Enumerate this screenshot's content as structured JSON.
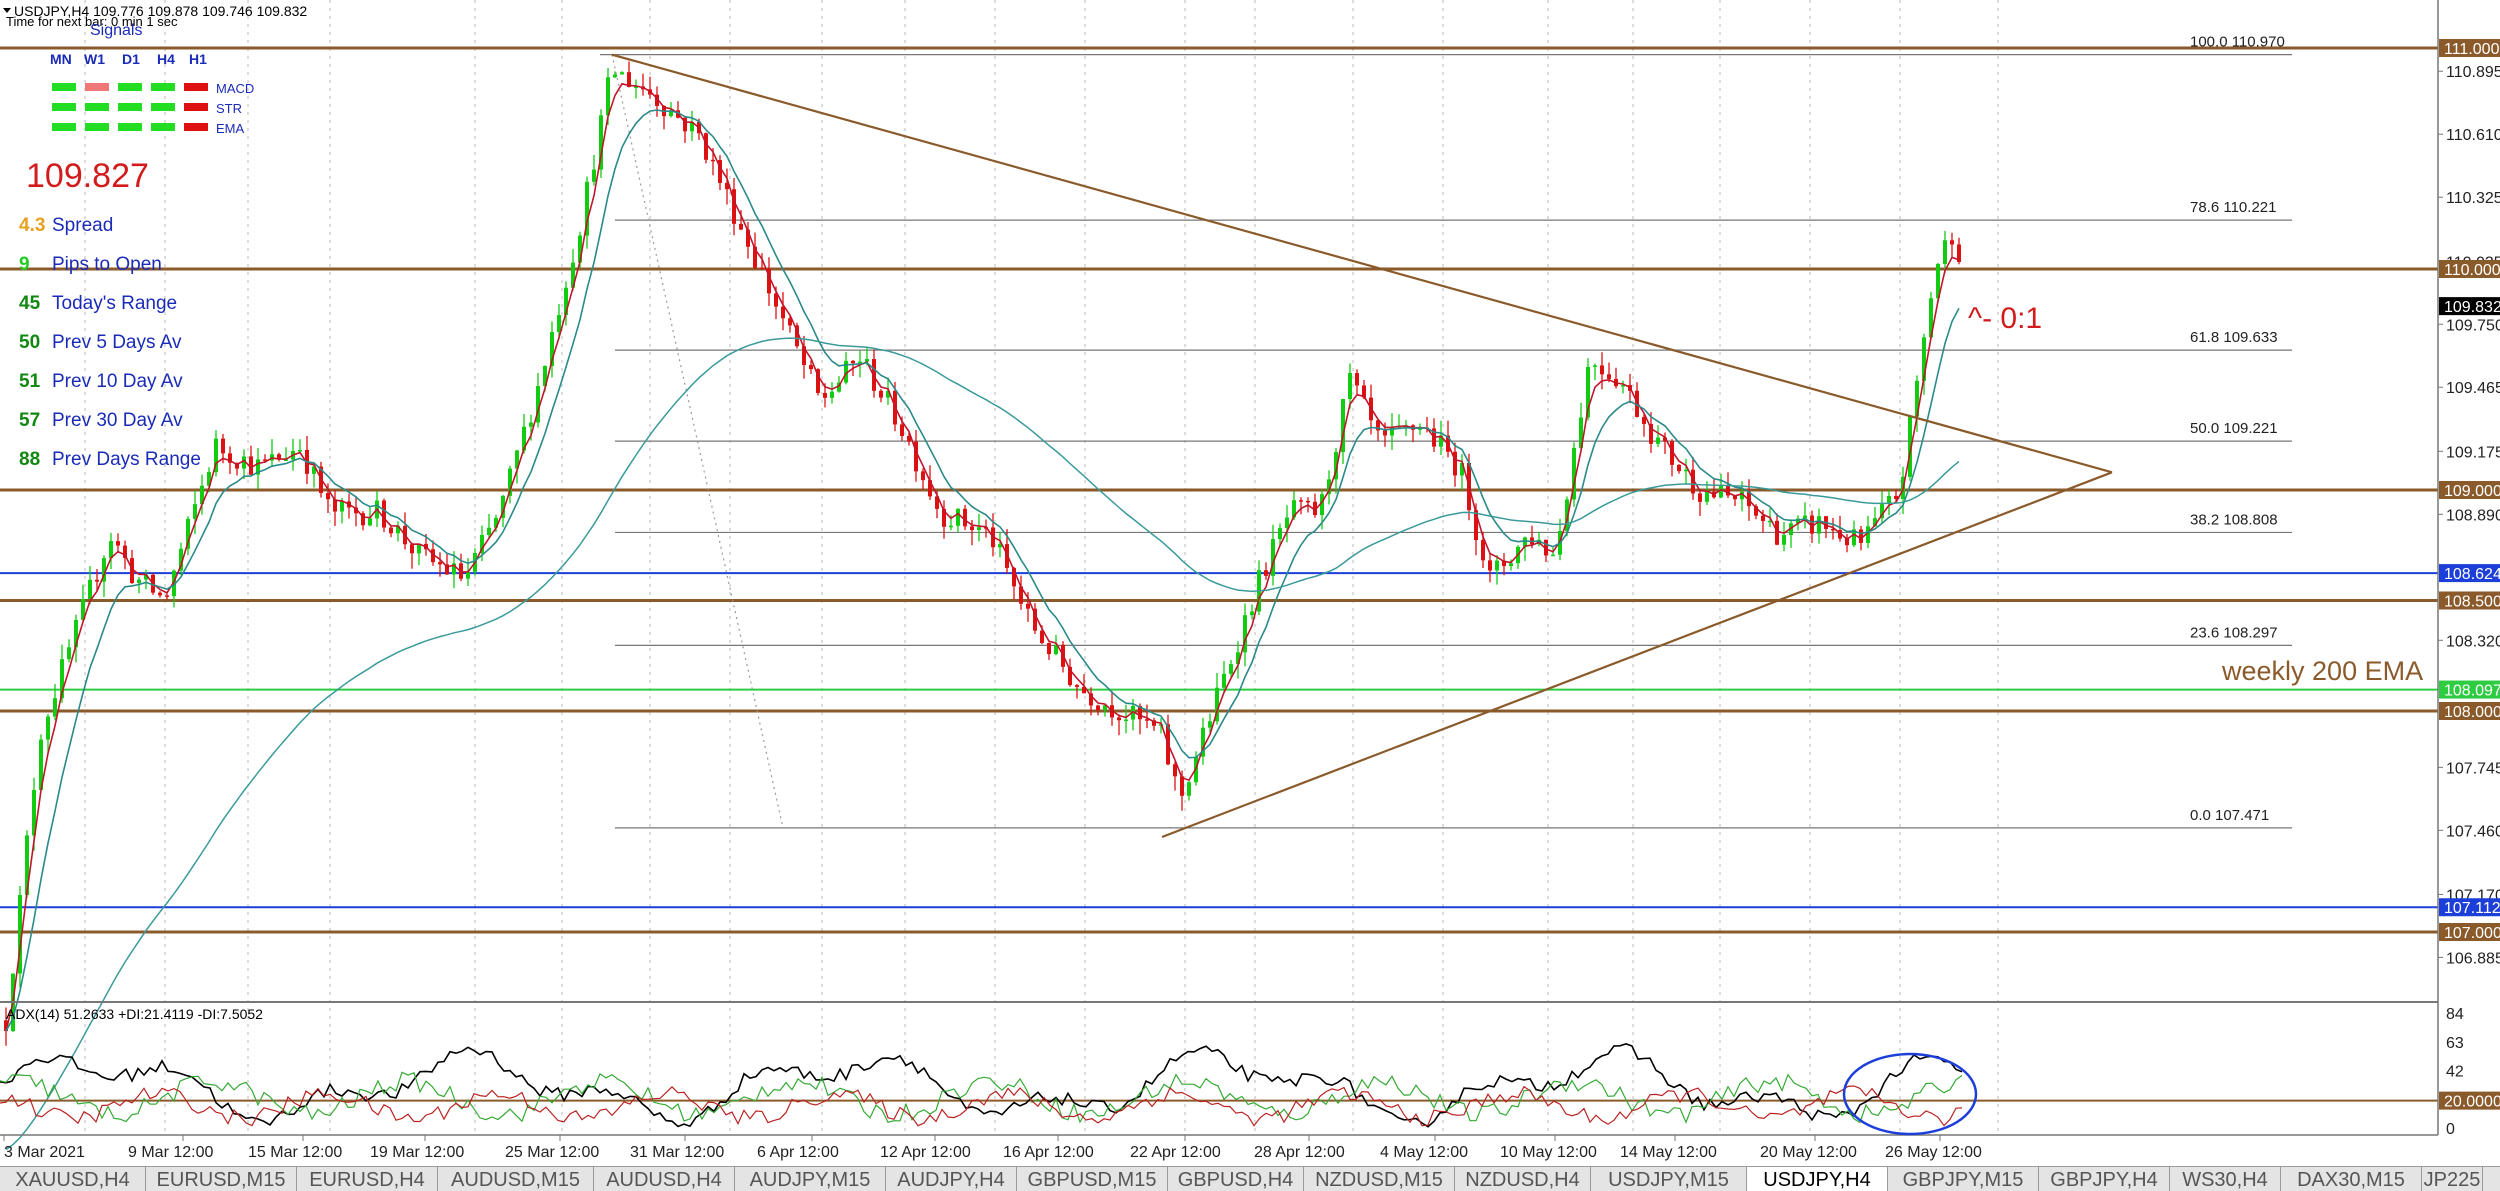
{
  "window": {
    "header_line": "USDJPY,H4  109.776 109.878 109.746 109.832",
    "timer_line": "Time for next bar: 0 min 1 sec",
    "signals_title": "Signals"
  },
  "signals": {
    "timeframes": [
      "MN",
      "W1",
      "D1",
      "H4",
      "H1"
    ],
    "rows": [
      {
        "label": "MACD",
        "states": [
          "green",
          "pink",
          "green",
          "green",
          "red"
        ]
      },
      {
        "label": "STR",
        "states": [
          "green",
          "green",
          "green",
          "green",
          "red"
        ]
      },
      {
        "label": "EMA",
        "states": [
          "green",
          "green",
          "green",
          "green",
          "red"
        ]
      }
    ],
    "colors": {
      "green": "#22dd22",
      "pink": "#f07777",
      "red": "#dd1111"
    }
  },
  "info_panel": {
    "price": "109.827",
    "stats": [
      {
        "value": "4.3",
        "label": "Spread",
        "value_color": "#e8a020"
      },
      {
        "value": "9",
        "label": "Pips to Open",
        "value_color": "#22cc22"
      },
      {
        "value": "45",
        "label": "Today's Range",
        "value_color": "#118811"
      },
      {
        "value": "50",
        "label": "Prev 5 Days Av",
        "value_color": "#118811"
      },
      {
        "value": "51",
        "label": "Prev 10 Day Av",
        "value_color": "#118811"
      },
      {
        "value": "57",
        "label": "Prev 30 Day Av",
        "value_color": "#118811"
      },
      {
        "value": "88",
        "label": "Prev Days Range",
        "value_color": "#118811"
      }
    ]
  },
  "price_axis": {
    "ticks": [
      "110.895",
      "110.610",
      "110.325",
      "110.035",
      "109.750",
      "109.465",
      "109.175",
      "108.890",
      "108.320",
      "107.745",
      "107.460",
      "107.170",
      "106.885"
    ],
    "tick_values": [
      110.895,
      110.61,
      110.325,
      110.035,
      109.75,
      109.465,
      109.175,
      108.89,
      108.32,
      107.745,
      107.46,
      107.17,
      106.885
    ],
    "badges": [
      {
        "text": "111.000",
        "value": 111.0,
        "bg": "#8b5a2b",
        "fg": "#ffffff"
      },
      {
        "text": "110.000",
        "value": 110.0,
        "bg": "#8b5a2b",
        "fg": "#ffffff"
      },
      {
        "text": "109.832",
        "value": 109.832,
        "bg": "#000000",
        "fg": "#ffffff"
      },
      {
        "text": "109.000",
        "value": 109.0,
        "bg": "#8b5a2b",
        "fg": "#ffffff"
      },
      {
        "text": "108.624",
        "value": 108.624,
        "bg": "#1c3fd9",
        "fg": "#ffffff"
      },
      {
        "text": "108.500",
        "value": 108.5,
        "bg": "#8b5a2b",
        "fg": "#ffffff"
      },
      {
        "text": "108.097",
        "value": 108.097,
        "bg": "#2ecc40",
        "fg": "#ffffff"
      },
      {
        "text": "108.000",
        "value": 108.0,
        "bg": "#8b5a2b",
        "fg": "#ffffff"
      },
      {
        "text": "107.112",
        "value": 107.112,
        "bg": "#1c3fd9",
        "fg": "#ffffff"
      },
      {
        "text": "107.000",
        "value": 107.0,
        "bg": "#8b5a2b",
        "fg": "#ffffff"
      }
    ]
  },
  "fibonacci": [
    {
      "level": "100.0",
      "price": "110.970",
      "value": 110.97
    },
    {
      "level": "78.6",
      "price": "110.221",
      "value": 110.221
    },
    {
      "level": "61.8",
      "price": "109.633",
      "value": 109.633
    },
    {
      "level": "50.0",
      "price": "109.221",
      "value": 109.221
    },
    {
      "level": "38.2",
      "price": "108.808",
      "value": 108.808
    },
    {
      "level": "23.6",
      "price": "108.297",
      "value": 108.297
    },
    {
      "level": "0.0",
      "price": "107.471",
      "value": 107.471
    }
  ],
  "annotations": {
    "ratio": "^- 0:1",
    "ema_note": "weekly 200 EMA"
  },
  "adx": {
    "label": "ADX(14) 51.2633 +DI:21.4119 -DI:7.5052",
    "ticks": [
      "84",
      "63",
      "42",
      "20.0000",
      "0"
    ],
    "tick_values": [
      84,
      63,
      42,
      20,
      0
    ]
  },
  "time_axis": {
    "labels": [
      "3 Mar 2021",
      "9 Mar 12:00",
      "15 Mar 12:00",
      "19 Mar 12:00",
      "25 Mar 12:00",
      "31 Mar 12:00",
      "6 Apr 12:00",
      "12 Apr 12:00",
      "16 Apr 12:00",
      "22 Apr 12:00",
      "28 Apr 12:00",
      "4 May 12:00",
      "10 May 12:00",
      "14 May 12:00",
      "20 May 12:00",
      "26 May 12:00"
    ]
  },
  "tabs": [
    {
      "label": "XAUUSD,H4",
      "active": false
    },
    {
      "label": "EURUSD,M15",
      "active": false
    },
    {
      "label": "EURUSD,H4",
      "active": false
    },
    {
      "label": "AUDUSD,M15",
      "active": false
    },
    {
      "label": "AUDUSD,H4",
      "active": false
    },
    {
      "label": "AUDJPY,M15",
      "active": false
    },
    {
      "label": "AUDJPY,H4",
      "active": false
    },
    {
      "label": "GBPUSD,M15",
      "active": false
    },
    {
      "label": "GBPUSD,H4",
      "active": false
    },
    {
      "label": "NZDUSD,M15",
      "active": false
    },
    {
      "label": "NZDUSD,H4",
      "active": false
    },
    {
      "label": "USDJPY,M15",
      "active": false
    },
    {
      "label": "USDJPY,H4",
      "active": true
    },
    {
      "label": "GBPJPY,M15",
      "active": false
    },
    {
      "label": "GBPJPY,H4",
      "active": false
    },
    {
      "label": "WS30,H4",
      "active": false
    },
    {
      "label": "DAX30,M15",
      "active": false
    },
    {
      "label": "JP225",
      "active": false
    }
  ],
  "chart_data": {
    "type": "line",
    "x": [
      "3 Mar 2021",
      "9 Mar 12:00",
      "15 Mar 12:00",
      "19 Mar 12:00",
      "25 Mar 12:00",
      "31 Mar 12:00",
      "6 Apr 12:00",
      "12 Apr 12:00",
      "16 Apr 12:00",
      "22 Apr 12:00",
      "28 Apr 12:00",
      "4 May 12:00",
      "10 May 12:00",
      "14 May 12:00",
      "20 May 12:00",
      "26 May 12:00"
    ],
    "series": [
      {
        "values": [
          106.9,
          108.6,
          109.3,
          108.8,
          109.8,
          110.8,
          109.8,
          108.9,
          108.1,
          107.6,
          109.1,
          109.4,
          108.9,
          109.3,
          108.8,
          109.832
        ]
      }
    ],
    "ylim": [
      106.6,
      111.1
    ],
    "grid": true
  }
}
